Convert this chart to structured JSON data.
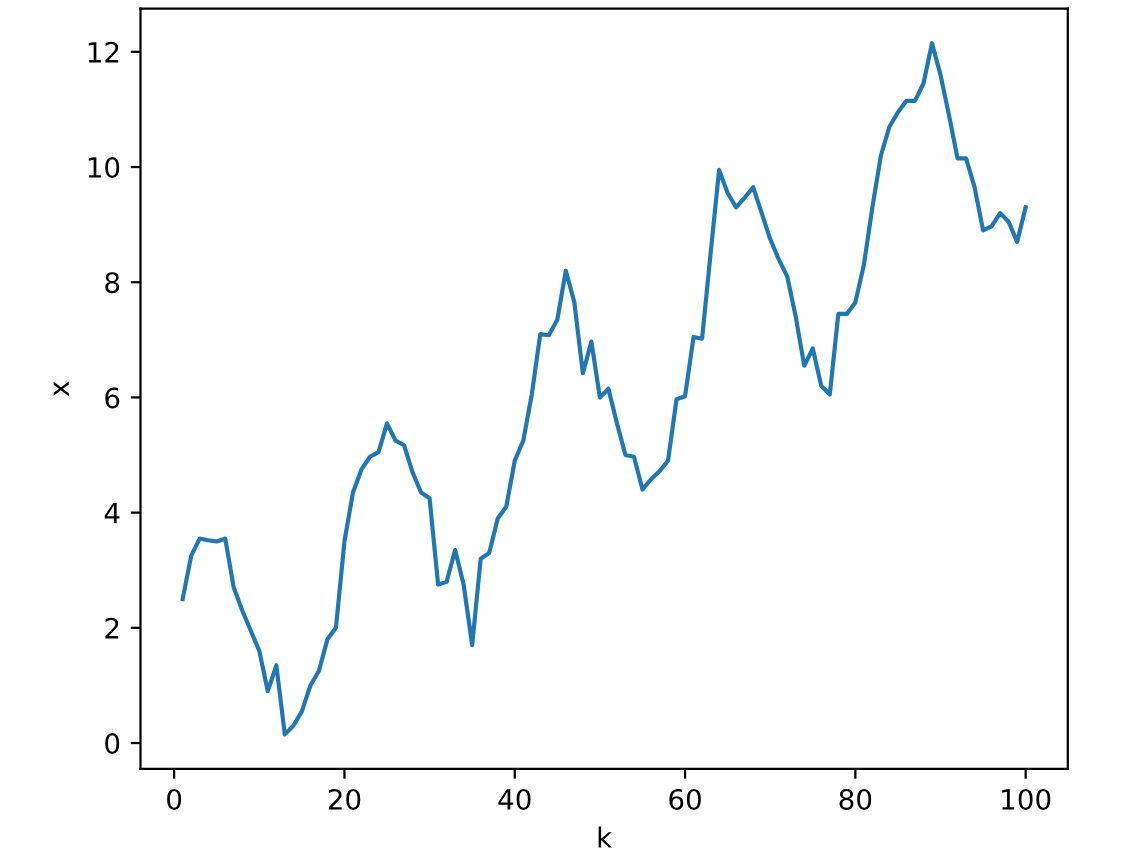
{
  "chart_data": {
    "type": "line",
    "xlabel": "k",
    "ylabel": "x",
    "x": [
      1,
      2,
      3,
      4,
      5,
      6,
      7,
      8,
      9,
      10,
      11,
      12,
      13,
      14,
      15,
      16,
      17,
      18,
      19,
      20,
      21,
      22,
      23,
      24,
      25,
      26,
      27,
      28,
      29,
      30,
      31,
      32,
      33,
      34,
      35,
      36,
      37,
      38,
      39,
      40,
      41,
      42,
      43,
      44,
      45,
      46,
      47,
      48,
      49,
      50,
      51,
      52,
      53,
      54,
      55,
      56,
      57,
      58,
      59,
      60,
      61,
      62,
      63,
      64,
      65,
      66,
      67,
      68,
      69,
      70,
      71,
      72,
      73,
      74,
      75,
      76,
      77,
      78,
      79,
      80,
      81,
      82,
      83,
      84,
      85,
      86,
      87,
      88,
      89,
      90,
      91,
      92,
      93,
      94,
      95,
      96,
      97,
      98,
      99,
      100
    ],
    "series": [
      {
        "color": "#1f77b4",
        "values": [
          2.5,
          3.25,
          3.55,
          3.52,
          3.5,
          3.55,
          2.7,
          2.3,
          1.95,
          1.6,
          0.9,
          1.35,
          0.15,
          0.3,
          0.55,
          1.0,
          1.25,
          1.8,
          2.0,
          3.5,
          4.35,
          4.75,
          4.97,
          5.05,
          5.55,
          5.25,
          5.17,
          4.7,
          4.35,
          4.25,
          2.75,
          2.8,
          3.35,
          2.75,
          1.7,
          3.2,
          3.3,
          3.9,
          4.1,
          4.9,
          5.25,
          6.05,
          7.1,
          7.08,
          7.35,
          8.2,
          7.65,
          6.42,
          6.97,
          6.0,
          6.15,
          5.55,
          5.0,
          4.97,
          4.4,
          4.58,
          4.72,
          4.9,
          5.97,
          6.02,
          7.05,
          7.02,
          8.5,
          9.95,
          9.55,
          9.3,
          9.47,
          9.65,
          9.2,
          8.75,
          8.4,
          8.1,
          7.4,
          6.55,
          6.85,
          6.2,
          6.05,
          7.45,
          7.45,
          7.65,
          8.3,
          9.3,
          10.2,
          10.7,
          10.95,
          11.15,
          11.15,
          11.45,
          12.15,
          11.6,
          10.9,
          10.15,
          10.15,
          9.65,
          8.9,
          8.97,
          9.2,
          9.05,
          8.7,
          9.3
        ]
      }
    ],
    "xlim": [
      -3.95,
      104.95
    ],
    "ylim": [
      -0.45,
      12.75
    ],
    "xticks": [
      0,
      20,
      40,
      60,
      80,
      100
    ],
    "yticks": [
      0,
      2,
      4,
      6,
      8,
      10,
      12
    ],
    "line_style": "solid",
    "grid": false,
    "legend": false
  }
}
